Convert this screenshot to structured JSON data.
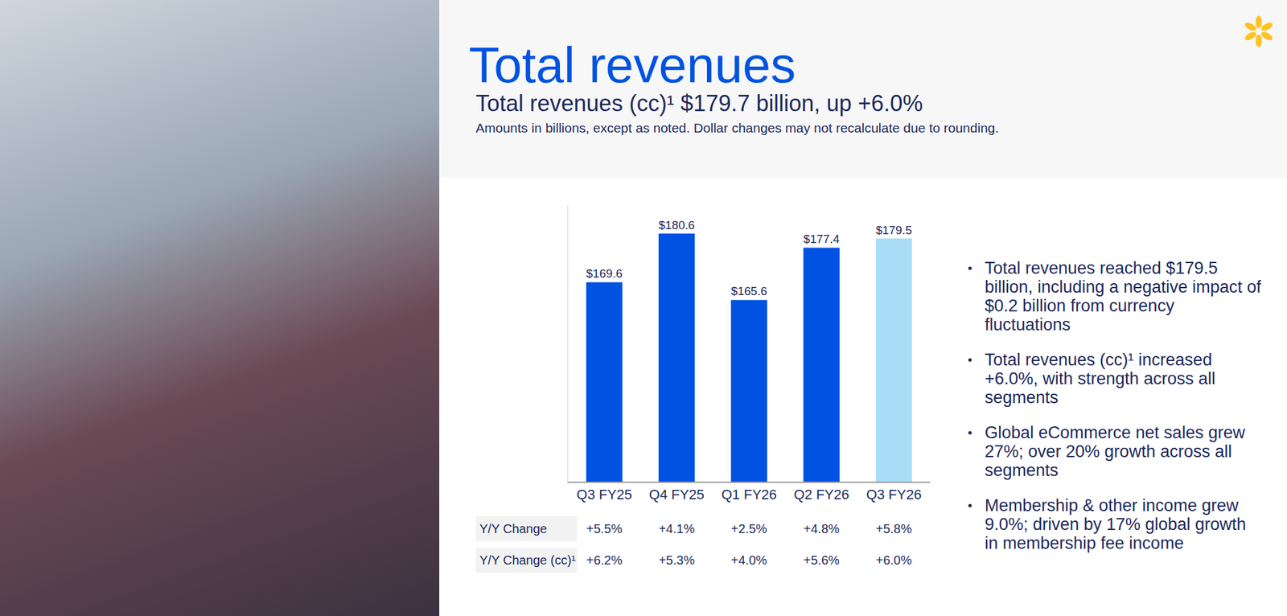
{
  "title": "Total revenues",
  "subtitle": "Total revenues (cc)¹ $179.7 billion, up +6.0%",
  "note": "Amounts in billions, except as noted.  Dollar changes may not recalculate due to rounding.",
  "chart_data": {
    "type": "bar",
    "categories": [
      "Q3 FY25",
      "Q4 FY25",
      "Q1 FY26",
      "Q2 FY26",
      "Q3 FY26"
    ],
    "values": [
      169.6,
      180.6,
      165.6,
      177.4,
      179.5
    ],
    "value_labels": [
      "$169.6",
      "$180.6",
      "$165.6",
      "$177.4",
      "$179.5"
    ],
    "colors": [
      "#0053e2",
      "#0053e2",
      "#0053e2",
      "#0053e2",
      "#a9ddf7"
    ],
    "ylim": [
      124.5,
      187
    ],
    "grid": false,
    "data_labels": true,
    "tick_labels": "x"
  },
  "change_table": {
    "rows": [
      {
        "label": "Y/Y Change",
        "values": [
          "+5.5%",
          "+4.1%",
          "+2.5%",
          "+4.8%",
          "+5.8%"
        ]
      },
      {
        "label": "Y/Y Change (cc)¹",
        "values": [
          "+6.2%",
          "+5.3%",
          "+4.0%",
          "+5.6%",
          "+6.0%"
        ]
      }
    ]
  },
  "bullets": [
    "Total revenues reached $179.5 billion, including a negative impact of $0.2 billion from currency fluctuations",
    "Total revenues (cc)¹ increased +6.0%, with strength across all segments",
    "Global eCommerce net sales grew 27%; over 20% growth across all segments",
    "Membership & other income grew 9.0%; driven by 17% global growth in membership fee income"
  ]
}
